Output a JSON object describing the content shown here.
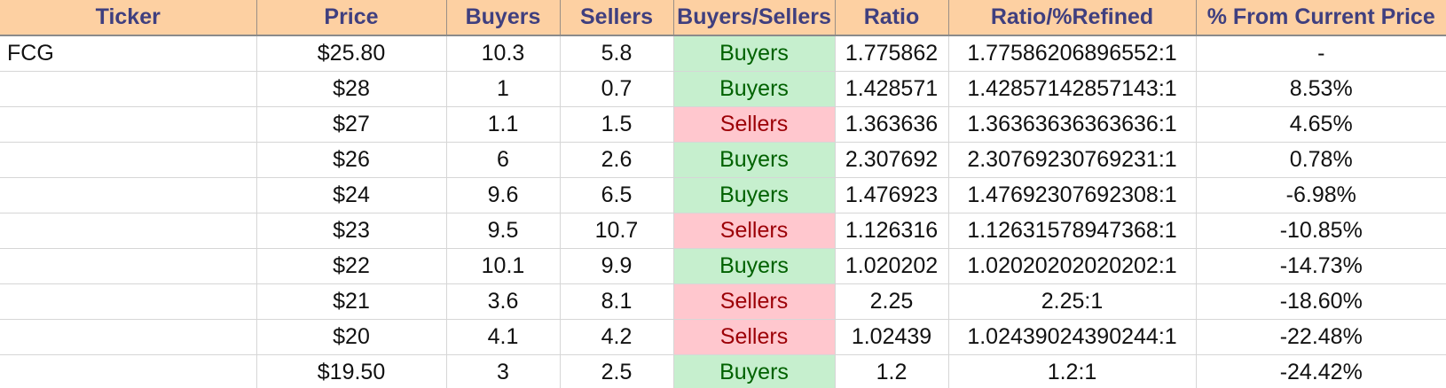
{
  "table": {
    "headers": [
      "Ticker",
      "Price",
      "Buyers",
      "Sellers",
      "Buyers/Sellers",
      "Ratio",
      "Ratio/%Refined",
      "% From Current Price"
    ],
    "rows": [
      {
        "ticker": "FCG",
        "price": "$25.80",
        "buyers": "10.3",
        "sellers": "5.8",
        "side": "Buyers",
        "ratio": "1.775862",
        "refined": "1.77586206896552:1",
        "pct": "-"
      },
      {
        "ticker": "",
        "price": "$28",
        "buyers": "1",
        "sellers": "0.7",
        "side": "Buyers",
        "ratio": "1.428571",
        "refined": "1.42857142857143:1",
        "pct": "8.53%"
      },
      {
        "ticker": "",
        "price": "$27",
        "buyers": "1.1",
        "sellers": "1.5",
        "side": "Sellers",
        "ratio": "1.363636",
        "refined": "1.36363636363636:1",
        "pct": "4.65%"
      },
      {
        "ticker": "",
        "price": "$26",
        "buyers": "6",
        "sellers": "2.6",
        "side": "Buyers",
        "ratio": "2.307692",
        "refined": "2.30769230769231:1",
        "pct": "0.78%"
      },
      {
        "ticker": "",
        "price": "$24",
        "buyers": "9.6",
        "sellers": "6.5",
        "side": "Buyers",
        "ratio": "1.476923",
        "refined": "1.47692307692308:1",
        "pct": "-6.98%"
      },
      {
        "ticker": "",
        "price": "$23",
        "buyers": "9.5",
        "sellers": "10.7",
        "side": "Sellers",
        "ratio": "1.126316",
        "refined": "1.12631578947368:1",
        "pct": "-10.85%"
      },
      {
        "ticker": "",
        "price": "$22",
        "buyers": "10.1",
        "sellers": "9.9",
        "side": "Buyers",
        "ratio": "1.020202",
        "refined": "1.02020202020202:1",
        "pct": "-14.73%"
      },
      {
        "ticker": "",
        "price": "$21",
        "buyers": "3.6",
        "sellers": "8.1",
        "side": "Sellers",
        "ratio": "2.25",
        "refined": "2.25:1",
        "pct": "-18.60%"
      },
      {
        "ticker": "",
        "price": "$20",
        "buyers": "4.1",
        "sellers": "4.2",
        "side": "Sellers",
        "ratio": "1.02439",
        "refined": "1.02439024390244:1",
        "pct": "-22.48%"
      },
      {
        "ticker": "",
        "price": "$19.50",
        "buyers": "3",
        "sellers": "2.5",
        "side": "Buyers",
        "ratio": "1.2",
        "refined": "1.2:1",
        "pct": "-24.42%"
      }
    ]
  },
  "colors": {
    "header_bg": "#fdd0a2",
    "header_text": "#3f3f7f",
    "buyers_bg": "#c6efce",
    "buyers_text": "#006100",
    "sellers_bg": "#ffc7ce",
    "sellers_text": "#9c0006"
  }
}
